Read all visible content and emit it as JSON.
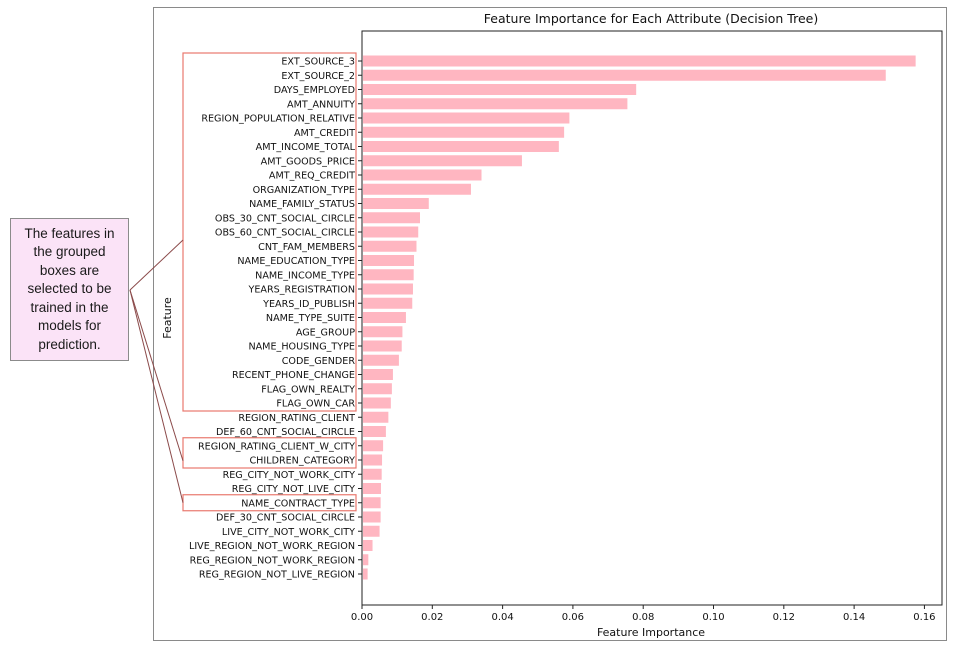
{
  "annotation": {
    "text": "The features in the grouped boxes are selected to be trained in the models for prediction."
  },
  "colors": {
    "bar": "#ffb6c1",
    "group_box": "#e8786e",
    "connector": "#8b4a4a",
    "callout_bg": "#fbe3f7"
  },
  "chart_data": {
    "type": "bar",
    "orientation": "horizontal",
    "title": "Feature Importance for Each Attribute (Decision Tree)",
    "xlabel": "Feature Importance",
    "ylabel": "Feature",
    "xlim": [
      0,
      0.165
    ],
    "xticks": [
      "0.00",
      "0.02",
      "0.04",
      "0.06",
      "0.08",
      "0.10",
      "0.12",
      "0.14",
      "0.16"
    ],
    "grid": false,
    "categories": [
      "EXT_SOURCE_3",
      "EXT_SOURCE_2",
      "DAYS_EMPLOYED",
      "AMT_ANNUITY",
      "REGION_POPULATION_RELATIVE",
      "AMT_CREDIT",
      "AMT_INCOME_TOTAL",
      "AMT_GOODS_PRICE",
      "AMT_REQ_CREDIT",
      "ORGANIZATION_TYPE",
      "NAME_FAMILY_STATUS",
      "OBS_30_CNT_SOCIAL_CIRCLE",
      "OBS_60_CNT_SOCIAL_CIRCLE",
      "CNT_FAM_MEMBERS",
      "NAME_EDUCATION_TYPE",
      "NAME_INCOME_TYPE",
      "YEARS_REGISTRATION",
      "YEARS_ID_PUBLISH",
      "NAME_TYPE_SUITE",
      "AGE_GROUP",
      "NAME_HOUSING_TYPE",
      "CODE_GENDER",
      "RECENT_PHONE_CHANGE",
      "FLAG_OWN_REALTY",
      "FLAG_OWN_CAR",
      "REGION_RATING_CLIENT",
      "DEF_60_CNT_SOCIAL_CIRCLE",
      "REGION_RATING_CLIENT_W_CITY",
      "CHILDREN_CATEGORY",
      "REG_CITY_NOT_WORK_CITY",
      "REG_CITY_NOT_LIVE_CITY",
      "NAME_CONTRACT_TYPE",
      "DEF_30_CNT_SOCIAL_CIRCLE",
      "LIVE_CITY_NOT_WORK_CITY",
      "LIVE_REGION_NOT_WORK_REGION",
      "REG_REGION_NOT_WORK_REGION",
      "REG_REGION_NOT_LIVE_REGION"
    ],
    "values": [
      0.1575,
      0.149,
      0.078,
      0.0755,
      0.059,
      0.0575,
      0.056,
      0.0455,
      0.034,
      0.031,
      0.019,
      0.0165,
      0.016,
      0.0155,
      0.0148,
      0.0147,
      0.0145,
      0.0143,
      0.0125,
      0.0115,
      0.0113,
      0.0105,
      0.0088,
      0.0085,
      0.0082,
      0.0075,
      0.0068,
      0.006,
      0.0057,
      0.0056,
      0.0054,
      0.0053,
      0.0053,
      0.005,
      0.003,
      0.0018,
      0.0016
    ],
    "grouped_selections": [
      [
        "EXT_SOURCE_3",
        "FLAG_OWN_CAR"
      ],
      [
        "REGION_RATING_CLIENT_W_CITY",
        "CHILDREN_CATEGORY"
      ],
      [
        "NAME_CONTRACT_TYPE",
        "NAME_CONTRACT_TYPE"
      ]
    ]
  }
}
